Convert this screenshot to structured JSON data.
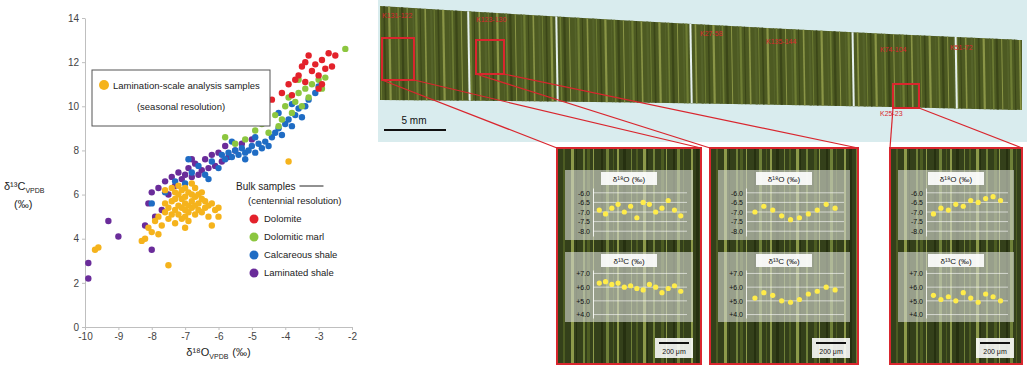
{
  "chart_data": [
    {
      "type": "scatter",
      "xlabel": [
        "δ¹⁸O",
        "VPDB",
        "(‰)"
      ],
      "ylabel": [
        "δ¹³C",
        "VPDB",
        "(‰)"
      ],
      "xlim": [
        -10,
        -2
      ],
      "xticks": [
        -10,
        -9,
        -8,
        -7,
        -6,
        -5,
        -4,
        -3,
        -2
      ],
      "ylim": [
        0,
        14
      ],
      "yticks": [
        0,
        2,
        4,
        6,
        8,
        10,
        12,
        14
      ],
      "grid": false,
      "legend": "upper left",
      "annotations": [
        "(seasonal resolution)",
        "Bulk samples",
        "(centennial resolution)"
      ],
      "series": [
        {
          "name": "Lamination-scale analysis samples",
          "color": "#f5b31c",
          "x": [
            -8.3,
            -8.1,
            -8.0,
            -7.9,
            -7.8,
            -7.7,
            -7.6,
            -7.6,
            -7.5,
            -7.5,
            -7.4,
            -7.4,
            -7.3,
            -7.3,
            -7.3,
            -7.2,
            -7.2,
            -7.2,
            -7.1,
            -7.1,
            -7.1,
            -7.0,
            -7.0,
            -7.0,
            -7.0,
            -6.9,
            -6.9,
            -6.9,
            -6.8,
            -6.8,
            -6.8,
            -6.7,
            -6.7,
            -6.7,
            -6.6,
            -6.6,
            -6.5,
            -6.5,
            -6.4,
            -6.4,
            -6.3,
            -6.3,
            -6.2,
            -6.1,
            -6.0,
            -7.6,
            -7.4,
            -7.2,
            -7.0,
            -6.8,
            -6.6,
            -6.9,
            -7.1,
            -7.3,
            -6.5,
            -6.2,
            -7.8,
            -8.2,
            -9.7,
            -9.6,
            -7.5,
            -3.9,
            -6.0,
            -7.0,
            -6.7
          ],
          "values": [
            3.9,
            4.5,
            4.3,
            4.8,
            5.0,
            4.6,
            5.2,
            5.6,
            4.9,
            5.4,
            5.1,
            5.7,
            5.3,
            5.8,
            4.7,
            5.5,
            6.0,
            5.1,
            5.4,
            5.8,
            6.2,
            5.3,
            5.6,
            5.9,
            5.0,
            5.5,
            6.1,
            5.2,
            5.7,
            5.4,
            6.0,
            5.5,
            5.1,
            5.9,
            5.6,
            5.3,
            5.8,
            5.2,
            5.7,
            5.4,
            5.5,
            5.0,
            5.6,
            5.3,
            5.4,
            6.2,
            6.3,
            6.4,
            6.3,
            6.5,
            6.0,
            4.8,
            4.9,
            6.1,
            6.1,
            4.6,
            4.2,
            4.0,
            3.5,
            3.6,
            2.8,
            7.5,
            5.0,
            4.5,
            6.3
          ]
        },
        {
          "name": "Dolomite",
          "color": "#e3222b",
          "x": [
            -4.4,
            -4.1,
            -3.9,
            -3.8,
            -3.6,
            -3.5,
            -3.4,
            -3.3,
            -3.2,
            -3.1,
            -3.0,
            -2.9,
            -2.8,
            -2.7,
            -2.6,
            -2.5,
            -3.0,
            -2.9,
            -3.7,
            -3.4
          ],
          "values": [
            10.3,
            10.6,
            11.0,
            10.5,
            11.4,
            11.8,
            11.1,
            12.3,
            11.6,
            11.9,
            11.4,
            12.1,
            11.7,
            12.4,
            11.8,
            12.3,
            10.8,
            11.0,
            11.2,
            12.0
          ]
        },
        {
          "name": "Dolomitic marl",
          "color": "#8cc63f",
          "x": [
            -5.8,
            -5.5,
            -5.2,
            -4.9,
            -4.7,
            -4.5,
            -4.3,
            -4.2,
            -4.0,
            -3.9,
            -3.8,
            -3.7,
            -3.6,
            -3.5,
            -3.4,
            -3.3,
            -3.2,
            -3.0,
            -2.9,
            -2.8,
            -2.2,
            -4.1,
            -3.6
          ],
          "values": [
            8.6,
            8.3,
            8.5,
            8.9,
            9.2,
            8.8,
            9.6,
            9.1,
            10.0,
            10.4,
            9.7,
            10.2,
            10.6,
            10.0,
            10.8,
            10.4,
            11.0,
            11.2,
            10.8,
            11.3,
            12.6,
            9.4,
            11.2
          ]
        },
        {
          "name": "Calcareous shale",
          "color": "#1f6cc4",
          "x": [
            -8.0,
            -7.6,
            -7.3,
            -7.0,
            -6.8,
            -6.6,
            -6.4,
            -6.2,
            -6.0,
            -5.9,
            -5.8,
            -5.7,
            -5.6,
            -5.5,
            -5.4,
            -5.3,
            -5.2,
            -5.1,
            -5.0,
            -4.9,
            -4.8,
            -4.7,
            -4.6,
            -4.5,
            -4.4,
            -4.3,
            -4.2,
            -4.1,
            -4.0,
            -3.9,
            -3.8,
            -3.7,
            -3.6,
            -3.5,
            -3.4,
            -3.3,
            -3.1,
            -3.0,
            -6.9,
            -5.6,
            -4.9,
            -4.2,
            -3.8,
            -6.3,
            -5.2
          ],
          "values": [
            5.6,
            6.1,
            6.6,
            6.5,
            7.0,
            7.3,
            6.9,
            7.5,
            7.2,
            7.8,
            7.6,
            7.9,
            7.7,
            8.0,
            7.8,
            8.1,
            7.9,
            8.0,
            8.2,
            7.9,
            8.3,
            8.1,
            8.4,
            8.2,
            8.6,
            8.8,
            9.0,
            8.7,
            9.2,
            9.4,
            9.1,
            9.6,
            9.9,
            9.5,
            10.0,
            10.3,
            10.6,
            10.9,
            7.6,
            8.4,
            8.6,
            9.7,
            10.1,
            6.7,
            7.6
          ]
        },
        {
          "name": "Laminated shale",
          "color": "#6a2c9a",
          "x": [
            -9.9,
            -9.9,
            -9.3,
            -9.0,
            -8.2,
            -8.1,
            -8.0,
            -7.9,
            -7.8,
            -7.6,
            -7.5,
            -7.4,
            -7.3,
            -7.2,
            -7.1,
            -7.0,
            -6.9,
            -6.8,
            -6.7,
            -6.6,
            -6.5,
            -6.4,
            -6.3,
            -6.2,
            -6.1,
            -6.0,
            -5.9,
            -5.7,
            -5.5,
            -5.3,
            -5.0,
            -8.0,
            -7.7,
            -6.8,
            -5.8
          ],
          "values": [
            2.2,
            2.9,
            4.8,
            4.1,
            4.6,
            5.6,
            6.1,
            5.0,
            6.3,
            6.6,
            6.0,
            6.8,
            6.4,
            7.0,
            6.7,
            6.9,
            7.2,
            6.8,
            7.4,
            6.9,
            7.1,
            7.6,
            7.2,
            7.8,
            7.3,
            7.9,
            7.5,
            7.7,
            8.0,
            8.3,
            8.5,
            3.5,
            5.3,
            7.6,
            8.2
          ]
        }
      ]
    },
    {
      "type": "scatter",
      "title": "δ¹⁸O (‰)",
      "color": "#ffec4a",
      "grid": true,
      "tick_labels": "y",
      "x": [
        1,
        2,
        3,
        4,
        5,
        6,
        7,
        8,
        9,
        10,
        11,
        12,
        13,
        14
      ],
      "xlim": [
        0,
        15
      ],
      "values": [
        -6.9,
        -7.1,
        -6.8,
        -6.6,
        -7.0,
        -6.7,
        -7.3,
        -6.5,
        -6.6,
        -7.0,
        -6.8,
        -6.4,
        -6.9,
        -7.2
      ],
      "ylim": [
        -8.25,
        -5.75
      ],
      "yticks": [
        {
          "value": -6,
          "label": "-6.0"
        },
        {
          "value": -6.5,
          "label": "-6.5"
        },
        {
          "value": -7,
          "label": "-7.0"
        },
        {
          "value": -7.5,
          "label": "-7.5"
        },
        {
          "value": -8,
          "label": "-8.0"
        }
      ]
    },
    {
      "type": "scatter",
      "title": "δ¹³C (‰)",
      "color": "#ffec4a",
      "grid": true,
      "tick_labels": "y",
      "x": [
        1,
        2,
        3,
        4,
        5,
        6,
        7,
        8,
        9,
        10,
        11,
        12,
        13,
        14
      ],
      "xlim": [
        0,
        15
      ],
      "values": [
        6.3,
        6.4,
        6.2,
        6.3,
        6.0,
        6.1,
        5.9,
        5.8,
        6.2,
        6.0,
        5.6,
        5.9,
        6.1,
        5.7
      ],
      "ylim": [
        3.75,
        7.25
      ],
      "yticks": [
        {
          "value": 7,
          "label": "+7.0"
        },
        {
          "value": 6,
          "label": "+6.0"
        },
        {
          "value": 5,
          "label": "+5.0"
        },
        {
          "value": 4,
          "label": "+4.0"
        }
      ]
    },
    {
      "type": "scatter",
      "title": "δ¹⁸O (‰)",
      "color": "#ffec4a",
      "grid": true,
      "tick_labels": "y",
      "x": [
        1,
        2,
        3,
        4,
        5,
        6,
        7,
        8,
        9,
        10
      ],
      "xlim": [
        0,
        11
      ],
      "values": [
        -7.0,
        -6.7,
        -6.9,
        -7.2,
        -7.4,
        -7.3,
        -7.1,
        -6.9,
        -6.6,
        -6.8
      ],
      "ylim": [
        -8.25,
        -5.75
      ],
      "yticks": [
        {
          "value": -6,
          "label": "-6.0"
        },
        {
          "value": -6.5,
          "label": "-6.5"
        },
        {
          "value": -7,
          "label": "-7.0"
        },
        {
          "value": -7.5,
          "label": "-7.5"
        },
        {
          "value": -8,
          "label": "-8.0"
        }
      ]
    },
    {
      "type": "scatter",
      "title": "δ¹³C (‰)",
      "color": "#ffec4a",
      "grid": true,
      "tick_labels": "y",
      "x": [
        1,
        2,
        3,
        4,
        5,
        6,
        7,
        8,
        9,
        10
      ],
      "xlim": [
        0,
        11
      ],
      "values": [
        5.2,
        5.6,
        5.4,
        5.0,
        4.9,
        5.1,
        5.5,
        5.7,
        6.0,
        5.8
      ],
      "ylim": [
        3.75,
        7.25
      ],
      "yticks": [
        {
          "value": 7,
          "label": "+7.0"
        },
        {
          "value": 6,
          "label": "+6.0"
        },
        {
          "value": 5,
          "label": "+5.0"
        },
        {
          "value": 4,
          "label": "+4.0"
        }
      ]
    },
    {
      "type": "scatter",
      "title": "δ¹⁸O (‰)",
      "color": "#ffec4a",
      "grid": true,
      "tick_labels": "y",
      "x": [
        1,
        2,
        3,
        4,
        5,
        6,
        7,
        8,
        9,
        10
      ],
      "xlim": [
        0,
        11
      ],
      "values": [
        -7.1,
        -6.8,
        -6.9,
        -6.6,
        -6.7,
        -6.4,
        -6.5,
        -6.3,
        -6.2,
        -6.4
      ],
      "ylim": [
        -8.25,
        -5.75
      ],
      "yticks": [
        {
          "value": -6,
          "label": "-6.0"
        },
        {
          "value": -6.5,
          "label": "-6.5"
        },
        {
          "value": -7,
          "label": "-7.0"
        },
        {
          "value": -7.5,
          "label": "-7.5"
        },
        {
          "value": -8,
          "label": "-8.0"
        }
      ]
    },
    {
      "type": "scatter",
      "title": "δ¹³C (‰)",
      "color": "#ffec4a",
      "grid": true,
      "tick_labels": "y",
      "x": [
        1,
        2,
        3,
        4,
        5,
        6,
        7,
        8,
        9,
        10
      ],
      "xlim": [
        0,
        11
      ],
      "values": [
        5.4,
        5.1,
        5.3,
        5.0,
        5.6,
        5.2,
        4.9,
        5.5,
        5.3,
        5.0
      ],
      "ylim": [
        3.75,
        7.25
      ],
      "yticks": [
        {
          "value": 7,
          "label": "+7.0"
        },
        {
          "value": 6,
          "label": "+6.0"
        },
        {
          "value": 5,
          "label": "+5.0"
        },
        {
          "value": 4,
          "label": "+4.0"
        }
      ]
    }
  ],
  "photo": {
    "sample_labels": [
      "K131-122",
      "K123-130",
      "K27-58",
      "K135-144",
      "K74-104",
      "K51-72",
      "K25-23"
    ],
    "scale_bar": "5 mm",
    "inset_scale_bar": "200 μm"
  }
}
